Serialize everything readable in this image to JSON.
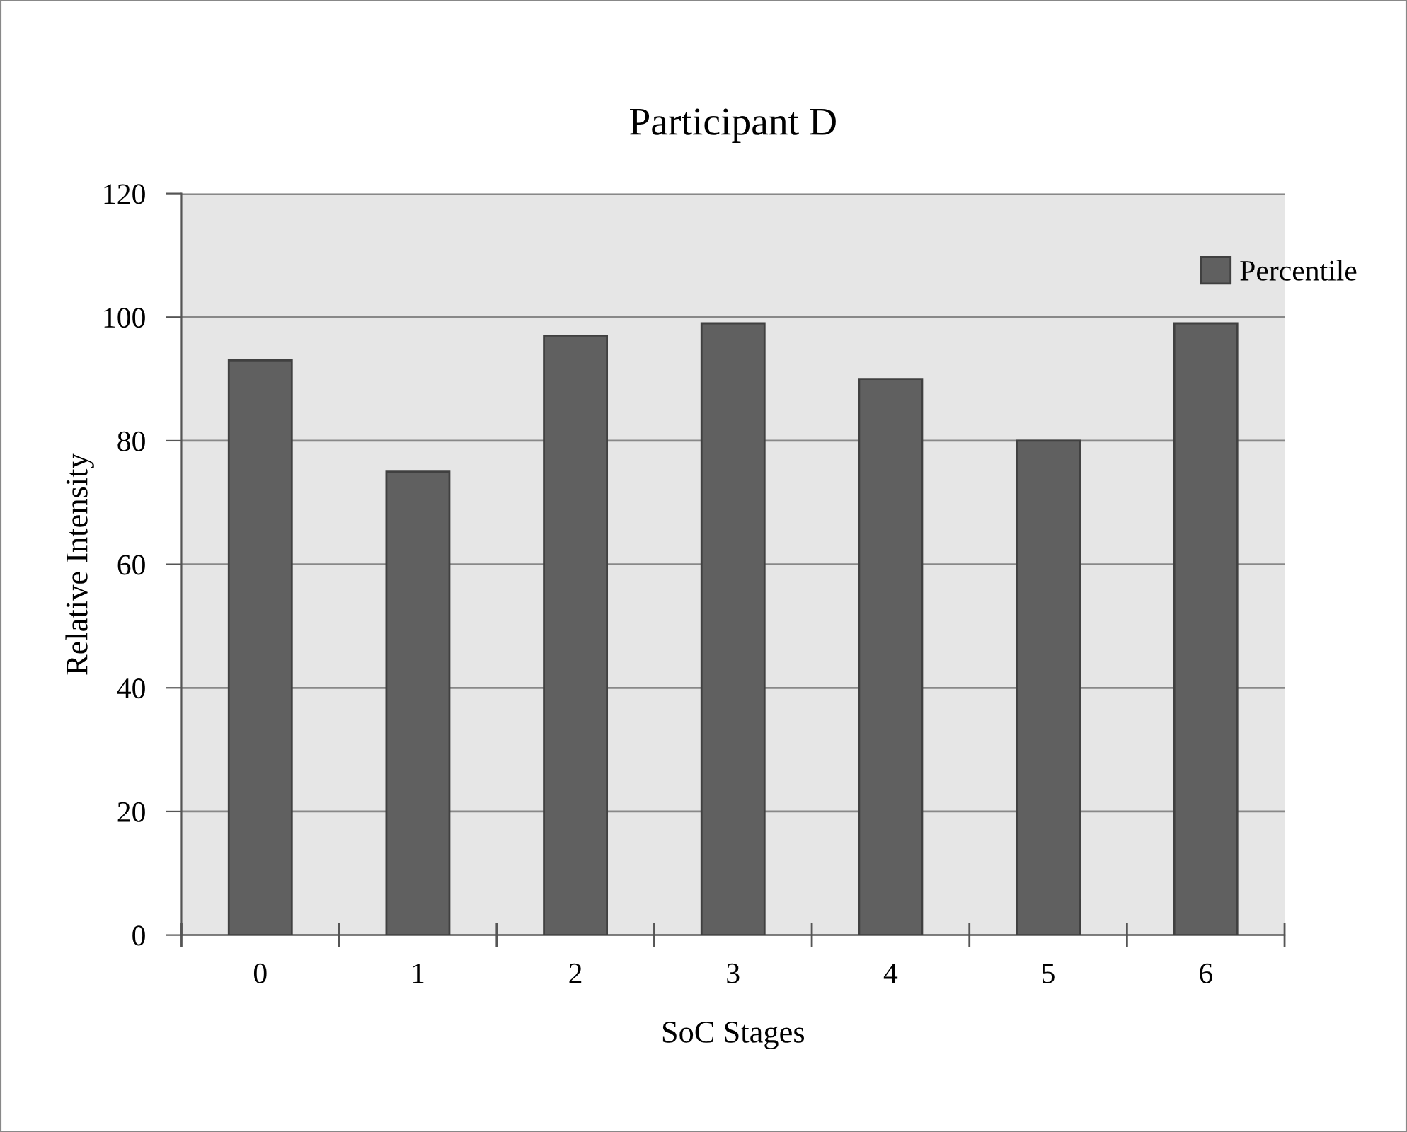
{
  "chart_data": {
    "type": "bar",
    "title": "Participant D",
    "xlabel": "SoC Stages",
    "ylabel": "Relative Intensity",
    "categories": [
      "0",
      "1",
      "2",
      "3",
      "4",
      "5",
      "6"
    ],
    "series": [
      {
        "name": "Percentile",
        "color": "#606060",
        "values": [
          93,
          75,
          97,
          99,
          90,
          80,
          99
        ]
      }
    ],
    "ylim": [
      0,
      120
    ],
    "yticks": [
      0,
      20,
      40,
      60,
      80,
      100,
      120
    ],
    "grid": "y",
    "legend": "top right"
  }
}
